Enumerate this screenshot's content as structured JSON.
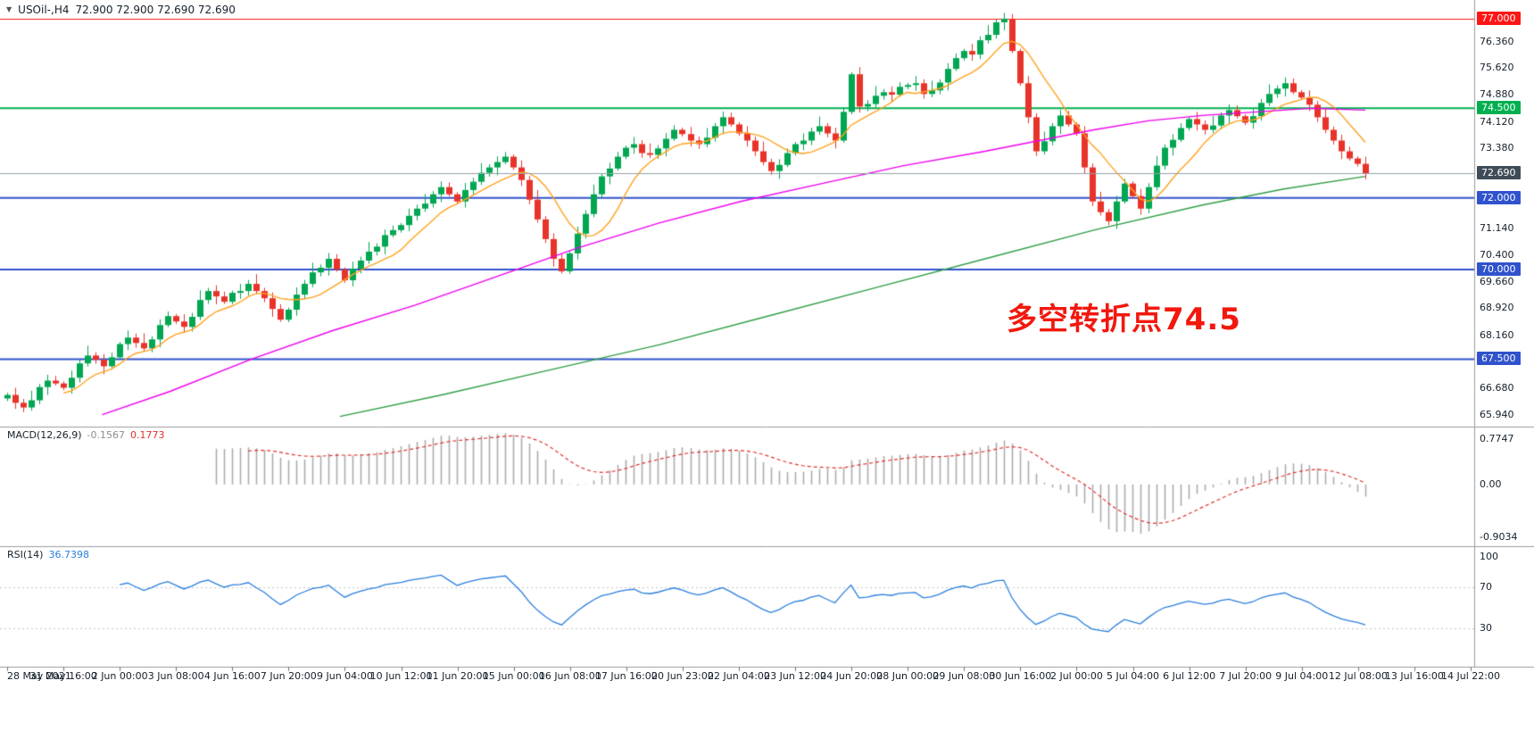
{
  "header": {
    "marker": "▼",
    "symbol": "USOil-,H4",
    "ohlc": "72.900 72.900 72.690 72.690"
  },
  "annotation": {
    "text": "多空转折点74.5",
    "color": "#f2180e"
  },
  "chart_data": {
    "type": "candlestick",
    "title": "USOil- H4",
    "first_open": 66.4,
    "closes": [
      66.5,
      66.28,
      66.15,
      66.35,
      66.72,
      66.9,
      66.82,
      66.7,
      66.98,
      67.38,
      67.6,
      67.48,
      67.3,
      67.55,
      67.92,
      68.1,
      67.95,
      67.8,
      68.05,
      68.45,
      68.7,
      68.55,
      68.4,
      68.68,
      69.15,
      69.4,
      69.25,
      69.1,
      69.35,
      69.4,
      69.6,
      69.4,
      69.2,
      68.9,
      68.6,
      68.88,
      69.3,
      69.6,
      69.92,
      70.05,
      70.3,
      70.0,
      69.7,
      70.02,
      70.25,
      70.5,
      70.64,
      70.96,
      71.1,
      71.24,
      71.5,
      71.7,
      71.84,
      72.1,
      72.3,
      72.1,
      71.9,
      72.22,
      72.45,
      72.7,
      72.85,
      73.0,
      73.15,
      72.85,
      72.5,
      71.95,
      71.4,
      70.85,
      70.3,
      69.95,
      70.45,
      71.0,
      71.55,
      72.1,
      72.6,
      72.82,
      73.15,
      73.4,
      73.5,
      73.25,
      73.2,
      73.38,
      73.65,
      73.9,
      73.78,
      73.6,
      73.5,
      73.68,
      74.0,
      74.25,
      74.05,
      73.8,
      73.6,
      73.3,
      73.0,
      72.75,
      72.92,
      73.25,
      73.5,
      73.6,
      73.85,
      74.0,
      73.8,
      73.6,
      74.4,
      75.45,
      74.55,
      74.62,
      74.85,
      74.95,
      74.88,
      75.1,
      75.15,
      75.2,
      74.9,
      75.0,
      75.22,
      75.6,
      75.9,
      76.1,
      76.0,
      76.4,
      76.55,
      76.9,
      77.0,
      76.1,
      75.2,
      74.25,
      73.3,
      73.58,
      74.0,
      74.3,
      74.05,
      73.8,
      72.85,
      71.9,
      71.6,
      71.35,
      71.9,
      72.4,
      72.05,
      71.7,
      72.3,
      72.9,
      73.4,
      73.62,
      73.95,
      74.2,
      74.05,
      73.9,
      74.02,
      74.3,
      74.45,
      74.28,
      74.1,
      74.28,
      74.65,
      74.9,
      75.05,
      75.2,
      74.95,
      74.8,
      74.6,
      74.25,
      73.9,
      73.6,
      73.3,
      73.1,
      72.95,
      72.69
    ],
    "candle_up_color": "#00a651",
    "candle_down_color": "#e8332a",
    "current_price": 72.69,
    "current_price_line_color": "#93a1ab",
    "horizontal_lines": [
      {
        "price": 77.0,
        "color": "#fe1616",
        "width": 1
      },
      {
        "price": 74.5,
        "color": "#00b050",
        "width": 2
      },
      {
        "price": 72.0,
        "color": "#3052cc",
        "width": 2
      },
      {
        "price": 70.0,
        "color": "#3052cc",
        "width": 2
      },
      {
        "price": 67.5,
        "color": "#3052cc",
        "width": 2
      }
    ],
    "price_ticks": [
      "76.360",
      "75.620",
      "74.880",
      "74.120",
      "73.380",
      "71.140",
      "70.400",
      "69.660",
      "68.920",
      "68.160",
      "66.680",
      "65.940"
    ],
    "price_badges": [
      {
        "label": "77.000",
        "price": 77.0,
        "color": "#fe1616"
      },
      {
        "label": "74.500",
        "price": 74.5,
        "color": "#00b050"
      },
      {
        "label": "72.690",
        "price": 72.69,
        "color": "#3f4c57"
      },
      {
        "label": "72.000",
        "price": 72.0,
        "color": "#3052cc"
      },
      {
        "label": "70.000",
        "price": 70.0,
        "color": "#3052cc"
      },
      {
        "label": "67.500",
        "price": 67.5,
        "color": "#3052cc"
      }
    ],
    "ma_fast": {
      "color": "#ffa21f",
      "period": 8
    },
    "ma_mid": {
      "color": "#ee00ee",
      "points": [
        [
          0.07,
          65.95
        ],
        [
          0.12,
          66.6
        ],
        [
          0.18,
          67.5
        ],
        [
          0.24,
          68.3
        ],
        [
          0.3,
          69.0
        ],
        [
          0.36,
          69.8
        ],
        [
          0.42,
          70.6
        ],
        [
          0.48,
          71.3
        ],
        [
          0.54,
          71.9
        ],
        [
          0.6,
          72.4
        ],
        [
          0.66,
          72.9
        ],
        [
          0.72,
          73.3
        ],
        [
          0.76,
          73.6
        ],
        [
          0.8,
          73.9
        ],
        [
          0.84,
          74.15
        ],
        [
          0.88,
          74.3
        ],
        [
          0.92,
          74.4
        ],
        [
          0.96,
          74.5
        ],
        [
          1.0,
          74.45
        ]
      ]
    },
    "ma_slow": {
      "color": "#2f9e44",
      "points": [
        [
          0.245,
          65.9
        ],
        [
          0.32,
          66.5
        ],
        [
          0.4,
          67.2
        ],
        [
          0.48,
          67.9
        ],
        [
          0.56,
          68.7
        ],
        [
          0.64,
          69.5
        ],
        [
          0.72,
          70.3
        ],
        [
          0.8,
          71.1
        ],
        [
          0.88,
          71.8
        ],
        [
          0.94,
          72.25
        ],
        [
          1.0,
          72.6
        ]
      ]
    },
    "macd": {
      "label": "MACD(12,26,9)",
      "main_value": "-0.1567",
      "signal_value": "0.1773",
      "fast": 12,
      "slow": 26,
      "signal": 9,
      "ticks": [
        "0.7747",
        "0.00",
        "-0.9034"
      ],
      "tick_values": [
        0.7747,
        0,
        -0.9034
      ],
      "histogram_color": "#ababab",
      "signal_color": "#e03131"
    },
    "rsi": {
      "label": "RSI(14)",
      "value": "36.7398",
      "period": 14,
      "ticks": [
        "100",
        "70",
        "30"
      ],
      "tick_values": [
        100,
        70,
        30
      ],
      "levels": [
        70,
        30
      ],
      "line_color": "#2a7fde"
    },
    "x_labels": [
      "28 May 2021",
      "31 May 16:00",
      "2 Jun 00:00",
      "3 Jun 08:00",
      "4 Jun 16:00",
      "7 Jun 20:00",
      "9 Jun 04:00",
      "10 Jun 12:00",
      "11 Jun 20:00",
      "15 Jun 00:00",
      "16 Jun 08:00",
      "17 Jun 16:00",
      "20 Jun 23:00",
      "22 Jun 04:00",
      "23 Jun 12:00",
      "24 Jun 20:00",
      "28 Jun 00:00",
      "29 Jun 08:00",
      "30 Jun 16:00",
      "2 Jul 00:00",
      "5 Jul 04:00",
      "6 Jul 12:00",
      "7 Jul 20:00",
      "9 Jul 04:00",
      "12 Jul 08:00",
      "13 Jul 16:00",
      "14 Jul 22:00"
    ]
  }
}
